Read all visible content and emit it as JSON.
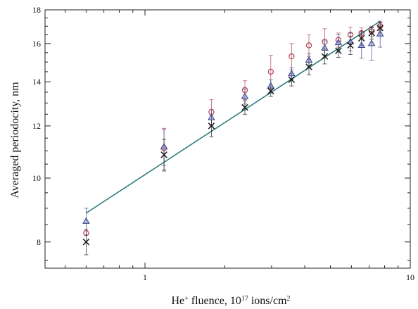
{
  "chart_data": {
    "type": "scatter",
    "xscale": "log",
    "yscale": "log",
    "xlim": [
      0.42,
      10
    ],
    "ylim": [
      7.3,
      18
    ],
    "grid": false,
    "legend": "none",
    "xlabel": {
      "main": "He",
      "sup1": "+",
      "mid": " fluence, 10",
      "sup2": "17",
      "mid2": " ions/cm",
      "sup3": "2"
    },
    "ylabel": "Averaged periodocity, nm",
    "x_ticks": [
      {
        "value": 1,
        "label": "1"
      },
      {
        "value": 10,
        "label": "10"
      }
    ],
    "y_ticks": [
      {
        "value": 8,
        "label": "8"
      },
      {
        "value": 10,
        "label": "10"
      },
      {
        "value": 12,
        "label": "12"
      },
      {
        "value": 14,
        "label": "14"
      },
      {
        "value": 16,
        "label": "16"
      },
      {
        "value": 18,
        "label": "18"
      }
    ],
    "fit_line": {
      "x": [
        0.6,
        7.7
      ],
      "y": [
        8.85,
        17.3
      ],
      "color": "#2f7d7d"
    },
    "series": [
      {
        "marker": "circle",
        "color": "#b04050",
        "points": [
          {
            "x": 0.6,
            "y": 8.25,
            "err": 0
          },
          {
            "x": 1.18,
            "y": 11.1,
            "err": 0.8
          },
          {
            "x": 1.78,
            "y": 12.6,
            "err": 0.55
          },
          {
            "x": 2.38,
            "y": 13.6,
            "err": 0.45
          },
          {
            "x": 2.98,
            "y": 14.5,
            "err": 0.85
          },
          {
            "x": 3.57,
            "y": 15.3,
            "err": 0.7
          },
          {
            "x": 4.15,
            "y": 15.9,
            "err": 0.6
          },
          {
            "x": 4.76,
            "y": 16.1,
            "err": 0.75
          },
          {
            "x": 5.36,
            "y": 16.2,
            "err": 0.4
          },
          {
            "x": 5.95,
            "y": 16.5,
            "err": 0.45
          },
          {
            "x": 6.55,
            "y": 16.6,
            "err": 0.3
          },
          {
            "x": 7.15,
            "y": 16.7,
            "err": 0.3
          },
          {
            "x": 7.7,
            "y": 17.0,
            "err": 0.25
          }
        ]
      },
      {
        "marker": "triangle",
        "color": "#3d4a8a",
        "points": [
          {
            "x": 0.6,
            "y": 8.6,
            "err": 0.4
          },
          {
            "x": 1.18,
            "y": 11.15,
            "err": 0.7
          },
          {
            "x": 1.78,
            "y": 12.35,
            "err": 0.35
          },
          {
            "x": 2.38,
            "y": 13.3,
            "err": 0.35
          },
          {
            "x": 2.98,
            "y": 13.8,
            "err": 0.3
          },
          {
            "x": 3.57,
            "y": 14.4,
            "err": 0.3
          },
          {
            "x": 4.15,
            "y": 15.1,
            "err": 0.35
          },
          {
            "x": 4.76,
            "y": 15.75,
            "err": 0.4
          },
          {
            "x": 5.36,
            "y": 16.05,
            "err": 0.45
          },
          {
            "x": 5.95,
            "y": 16.1,
            "err": 0.5
          },
          {
            "x": 6.55,
            "y": 15.9,
            "err": 0.7
          },
          {
            "x": 7.15,
            "y": 16.0,
            "err": 0.9
          },
          {
            "x": 7.7,
            "y": 16.55,
            "err": 0.75
          }
        ]
      },
      {
        "marker": "cross",
        "color": "#1a1a1a",
        "points": [
          {
            "x": 0.6,
            "y": 8.0,
            "err": 0.35
          },
          {
            "x": 1.18,
            "y": 10.85,
            "err": 0.6
          },
          {
            "x": 1.78,
            "y": 12.0,
            "err": 0.45
          },
          {
            "x": 2.38,
            "y": 12.8,
            "err": 0.3
          },
          {
            "x": 2.98,
            "y": 13.55,
            "err": 0.25
          },
          {
            "x": 3.57,
            "y": 14.1,
            "err": 0.3
          },
          {
            "x": 4.15,
            "y": 14.75,
            "err": 0.4
          },
          {
            "x": 4.76,
            "y": 15.3,
            "err": 0.4
          },
          {
            "x": 5.36,
            "y": 15.6,
            "err": 0.35
          },
          {
            "x": 5.95,
            "y": 15.9,
            "err": 0.5
          },
          {
            "x": 6.55,
            "y": 16.3,
            "err": 0.4
          },
          {
            "x": 7.15,
            "y": 16.6,
            "err": 0.35
          },
          {
            "x": 7.7,
            "y": 16.9,
            "err": 0.3
          }
        ]
      }
    ]
  }
}
